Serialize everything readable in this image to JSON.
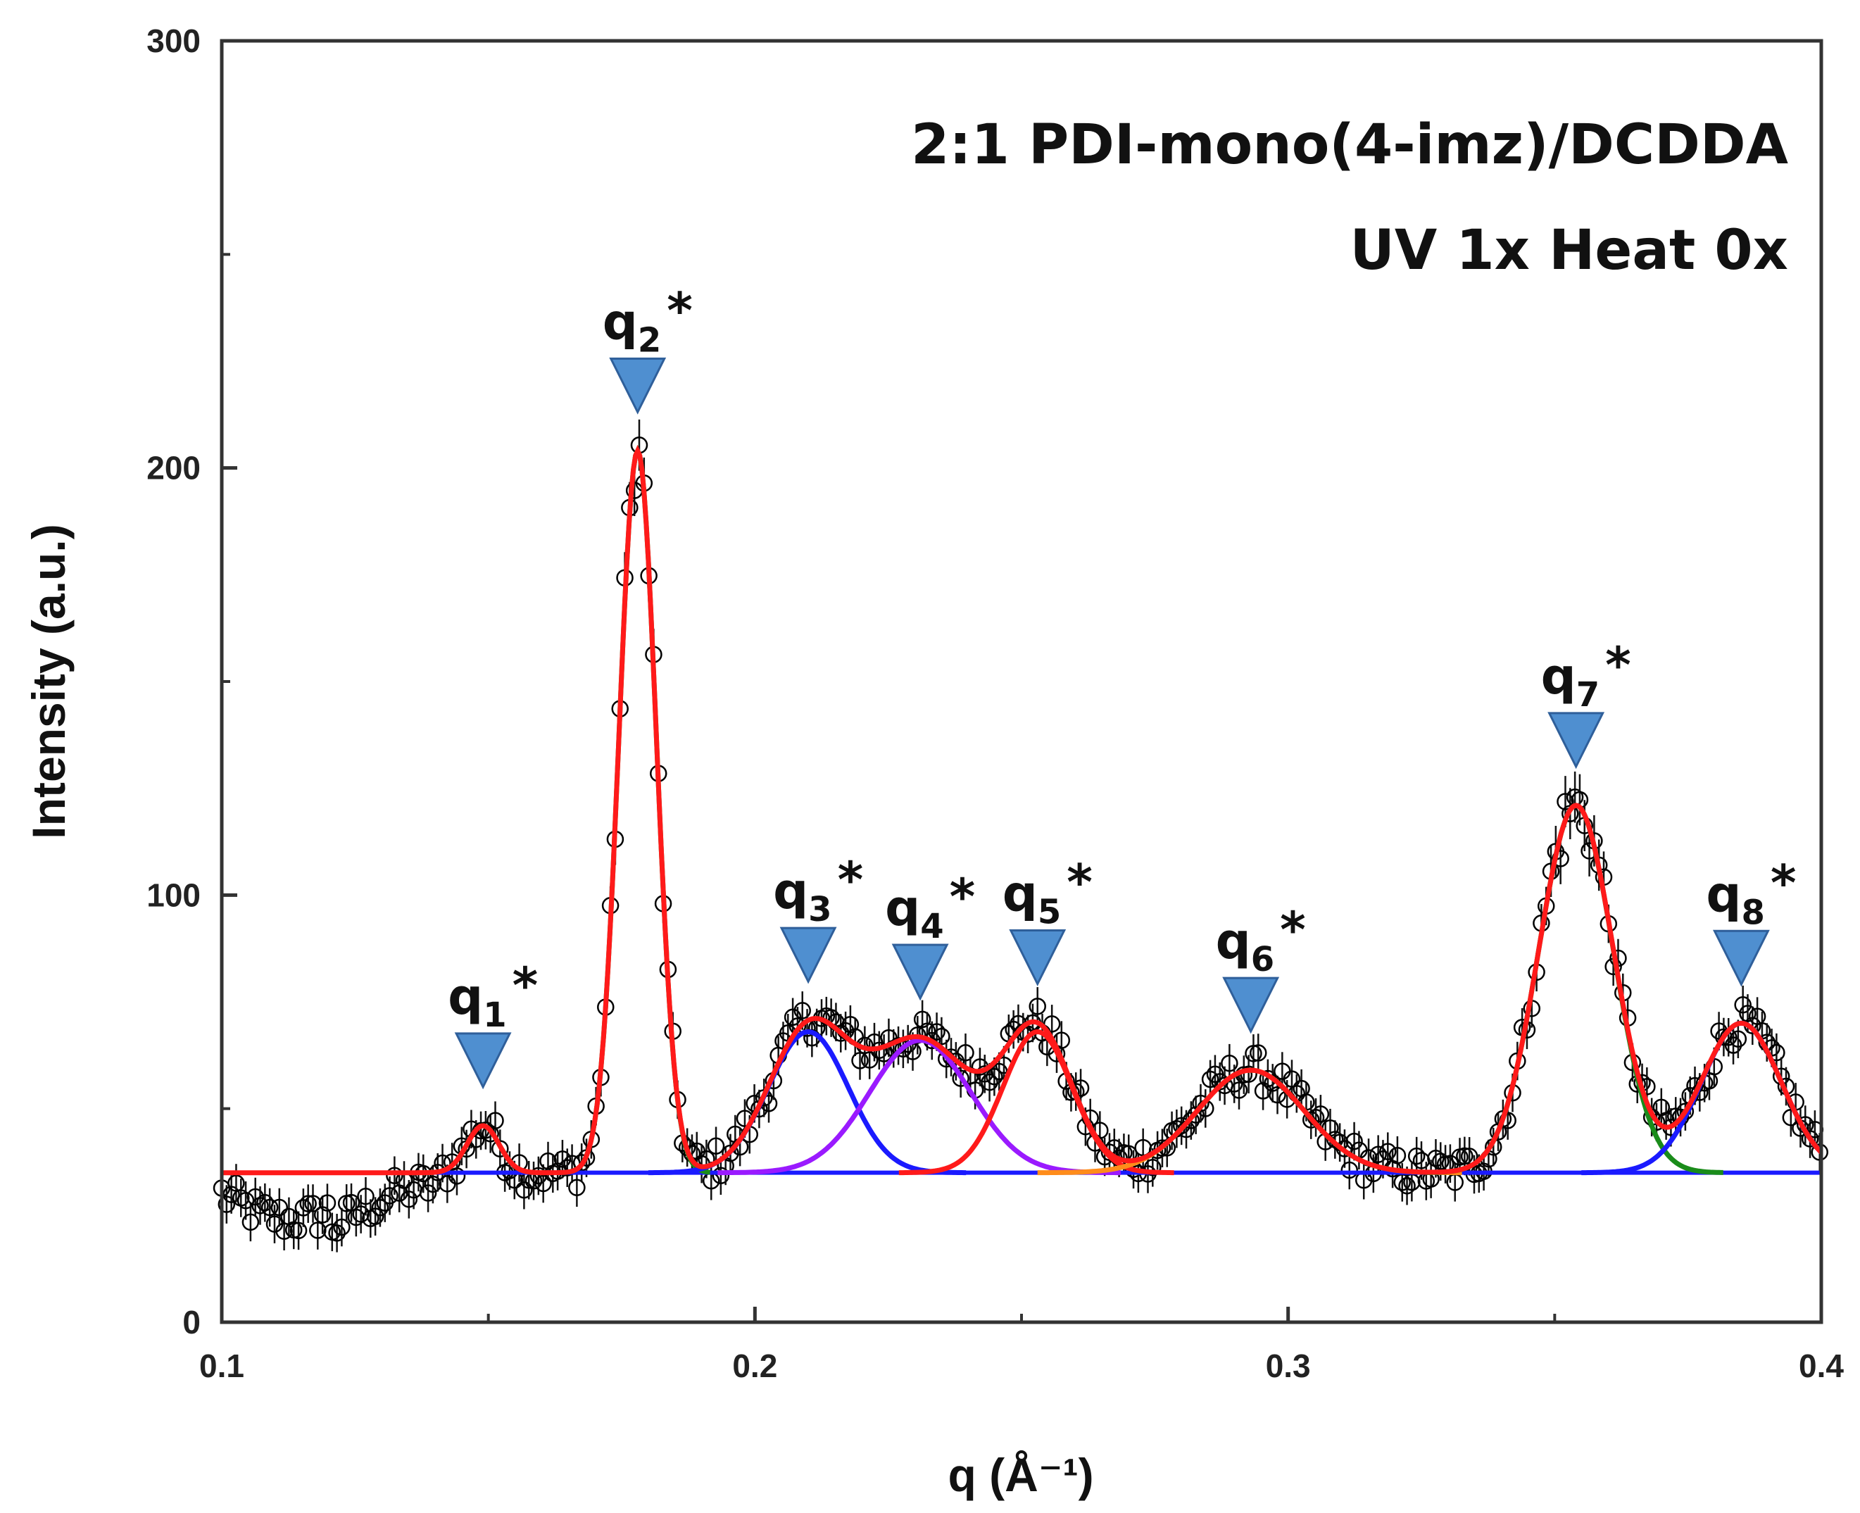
{
  "chart_data": {
    "type": "line",
    "title": "2:1 PDI-mono(4-imz)/DCDDA",
    "subtitle": "UV 1x Heat 0x",
    "xlabel": "q (Å⁻¹)",
    "ylabel": "Intensity (a.u.)",
    "xlim": [
      0.1,
      0.4
    ],
    "ylim": [
      0,
      300
    ],
    "x_ticks": [
      0.1,
      0.2,
      0.3,
      0.4
    ],
    "x_tick_labels": [
      "0.1",
      "0.2",
      "0.3",
      "0.4"
    ],
    "y_ticks": [
      0,
      100,
      200,
      300
    ],
    "y_tick_labels": [
      "0",
      "100",
      "200",
      "300"
    ],
    "grid": false,
    "legend": "none",
    "baseline": 35,
    "peaks": [
      {
        "label": "q",
        "sub": "1",
        "star": "*",
        "q": 0.149,
        "height": 11,
        "width": 0.003,
        "color": "#ff8c1a"
      },
      {
        "label": "q",
        "sub": "2",
        "star": "*",
        "q": 0.178,
        "height": 169,
        "width": 0.0035,
        "color": "#1a8c1a"
      },
      {
        "label": "q",
        "sub": "3",
        "star": "*",
        "q": 0.21,
        "height": 33,
        "width": 0.0075,
        "color": "#1a1aff"
      },
      {
        "label": "q",
        "sub": "4",
        "star": "*",
        "q": 0.231,
        "height": 31,
        "width": 0.0095,
        "color": "#9a1aff"
      },
      {
        "label": "q",
        "sub": "5",
        "star": "*",
        "q": 0.253,
        "height": 33,
        "width": 0.0065,
        "color": "#ff1a1a"
      },
      {
        "label": "q",
        "sub": "6",
        "star": "*",
        "q": 0.293,
        "height": 24,
        "width": 0.01,
        "color": "#ff8c1a"
      },
      {
        "label": "q",
        "sub": "7",
        "star": "*",
        "q": 0.354,
        "height": 86,
        "width": 0.007,
        "color": "#1a8c1a"
      },
      {
        "label": "q",
        "sub": "8",
        "star": "*",
        "q": 0.385,
        "height": 35,
        "width": 0.0075,
        "color": "#1a1aff"
      }
    ],
    "marker_color": "#4f8fd0",
    "fit_color": "#ff1a1a",
    "baseline_color": "#1a1aff",
    "data_color": "#000000"
  }
}
